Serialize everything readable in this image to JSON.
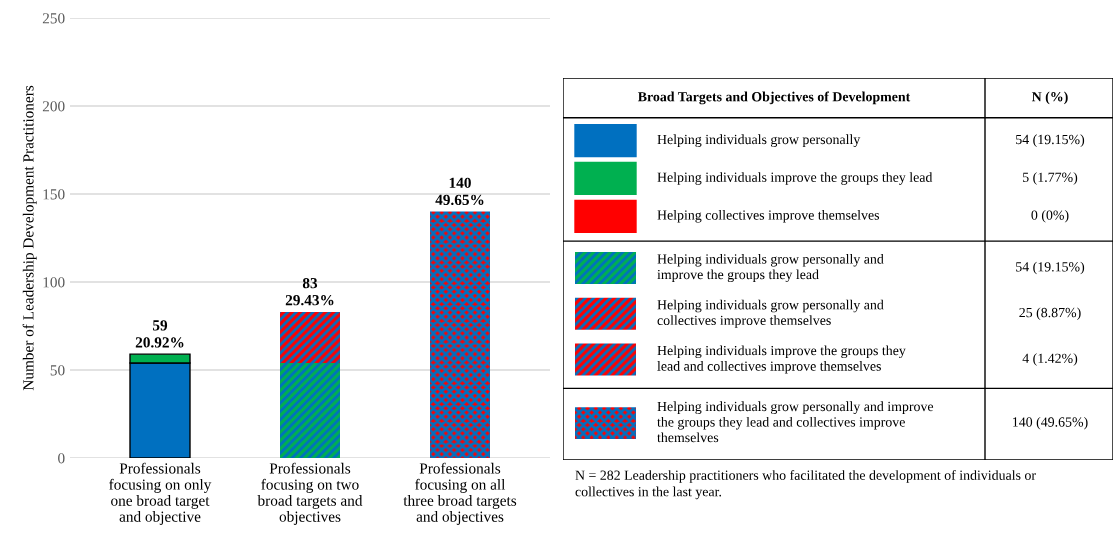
{
  "chart_data": {
    "type": "bar",
    "stacked": true,
    "categories": [
      "Professionals\nfocusing on only\none broad target\nand objective",
      "Professionals\nfocusing on two\nbroad targets and\nobjectives",
      "Professionals\nfocusing on all\nthree broad targets\nand objectives"
    ],
    "ylabel": "Number of Leadership Development Practitioners",
    "ylim": [
      0,
      250
    ],
    "yticks": [
      0,
      50,
      100,
      150,
      200,
      250
    ],
    "grid": "y",
    "legend": "right",
    "legend_title": "Broad Targets and Objectives of Development",
    "series": [
      {
        "name": "Helping individuals grow personally",
        "color": "#0070c0",
        "values": [
          54,
          null,
          null
        ]
      },
      {
        "name": "Helping individuals improve the groups they lead",
        "color": "#00b050",
        "values": [
          5,
          null,
          null
        ]
      },
      {
        "name": "Helping collectives improve themselves",
        "color": "#ff0000",
        "values": [
          0,
          null,
          null
        ]
      },
      {
        "name": "Helping individuals grow personally and\nimprove the groups they lead",
        "color": "#00b050",
        "values": [
          null,
          54,
          null
        ]
      },
      {
        "name": "Helping individuals grow personally and\ncollectives improve themselves",
        "color": "#ff0000",
        "values": [
          null,
          25,
          null
        ]
      },
      {
        "name": "Helping individuals improve the groups they\nlead and collectives improve themselves",
        "color": "#ff0000",
        "values": [
          null,
          4,
          null
        ]
      },
      {
        "name": "Helping individuals grow personally and improve\nthe groups they lead and collectives improve\nthemselves",
        "color": "#ff0000",
        "values": [
          null,
          null,
          140
        ]
      }
    ],
    "totals": [
      "59\n20.92%",
      "83\n29.43%",
      "140\n49.65%"
    ],
    "annotations": [
      "N (%)",
      "54 (19.15%)",
      "5 (1.77%)",
      "0 (0%)",
      "54 (19.15%)",
      "25 (8.87%)",
      "4 (1.42%)",
      "140 (49.65%)",
      "N = 282 Leadership practitioners who facilitated the development of individuals or\ncollectives in the last year."
    ]
  }
}
